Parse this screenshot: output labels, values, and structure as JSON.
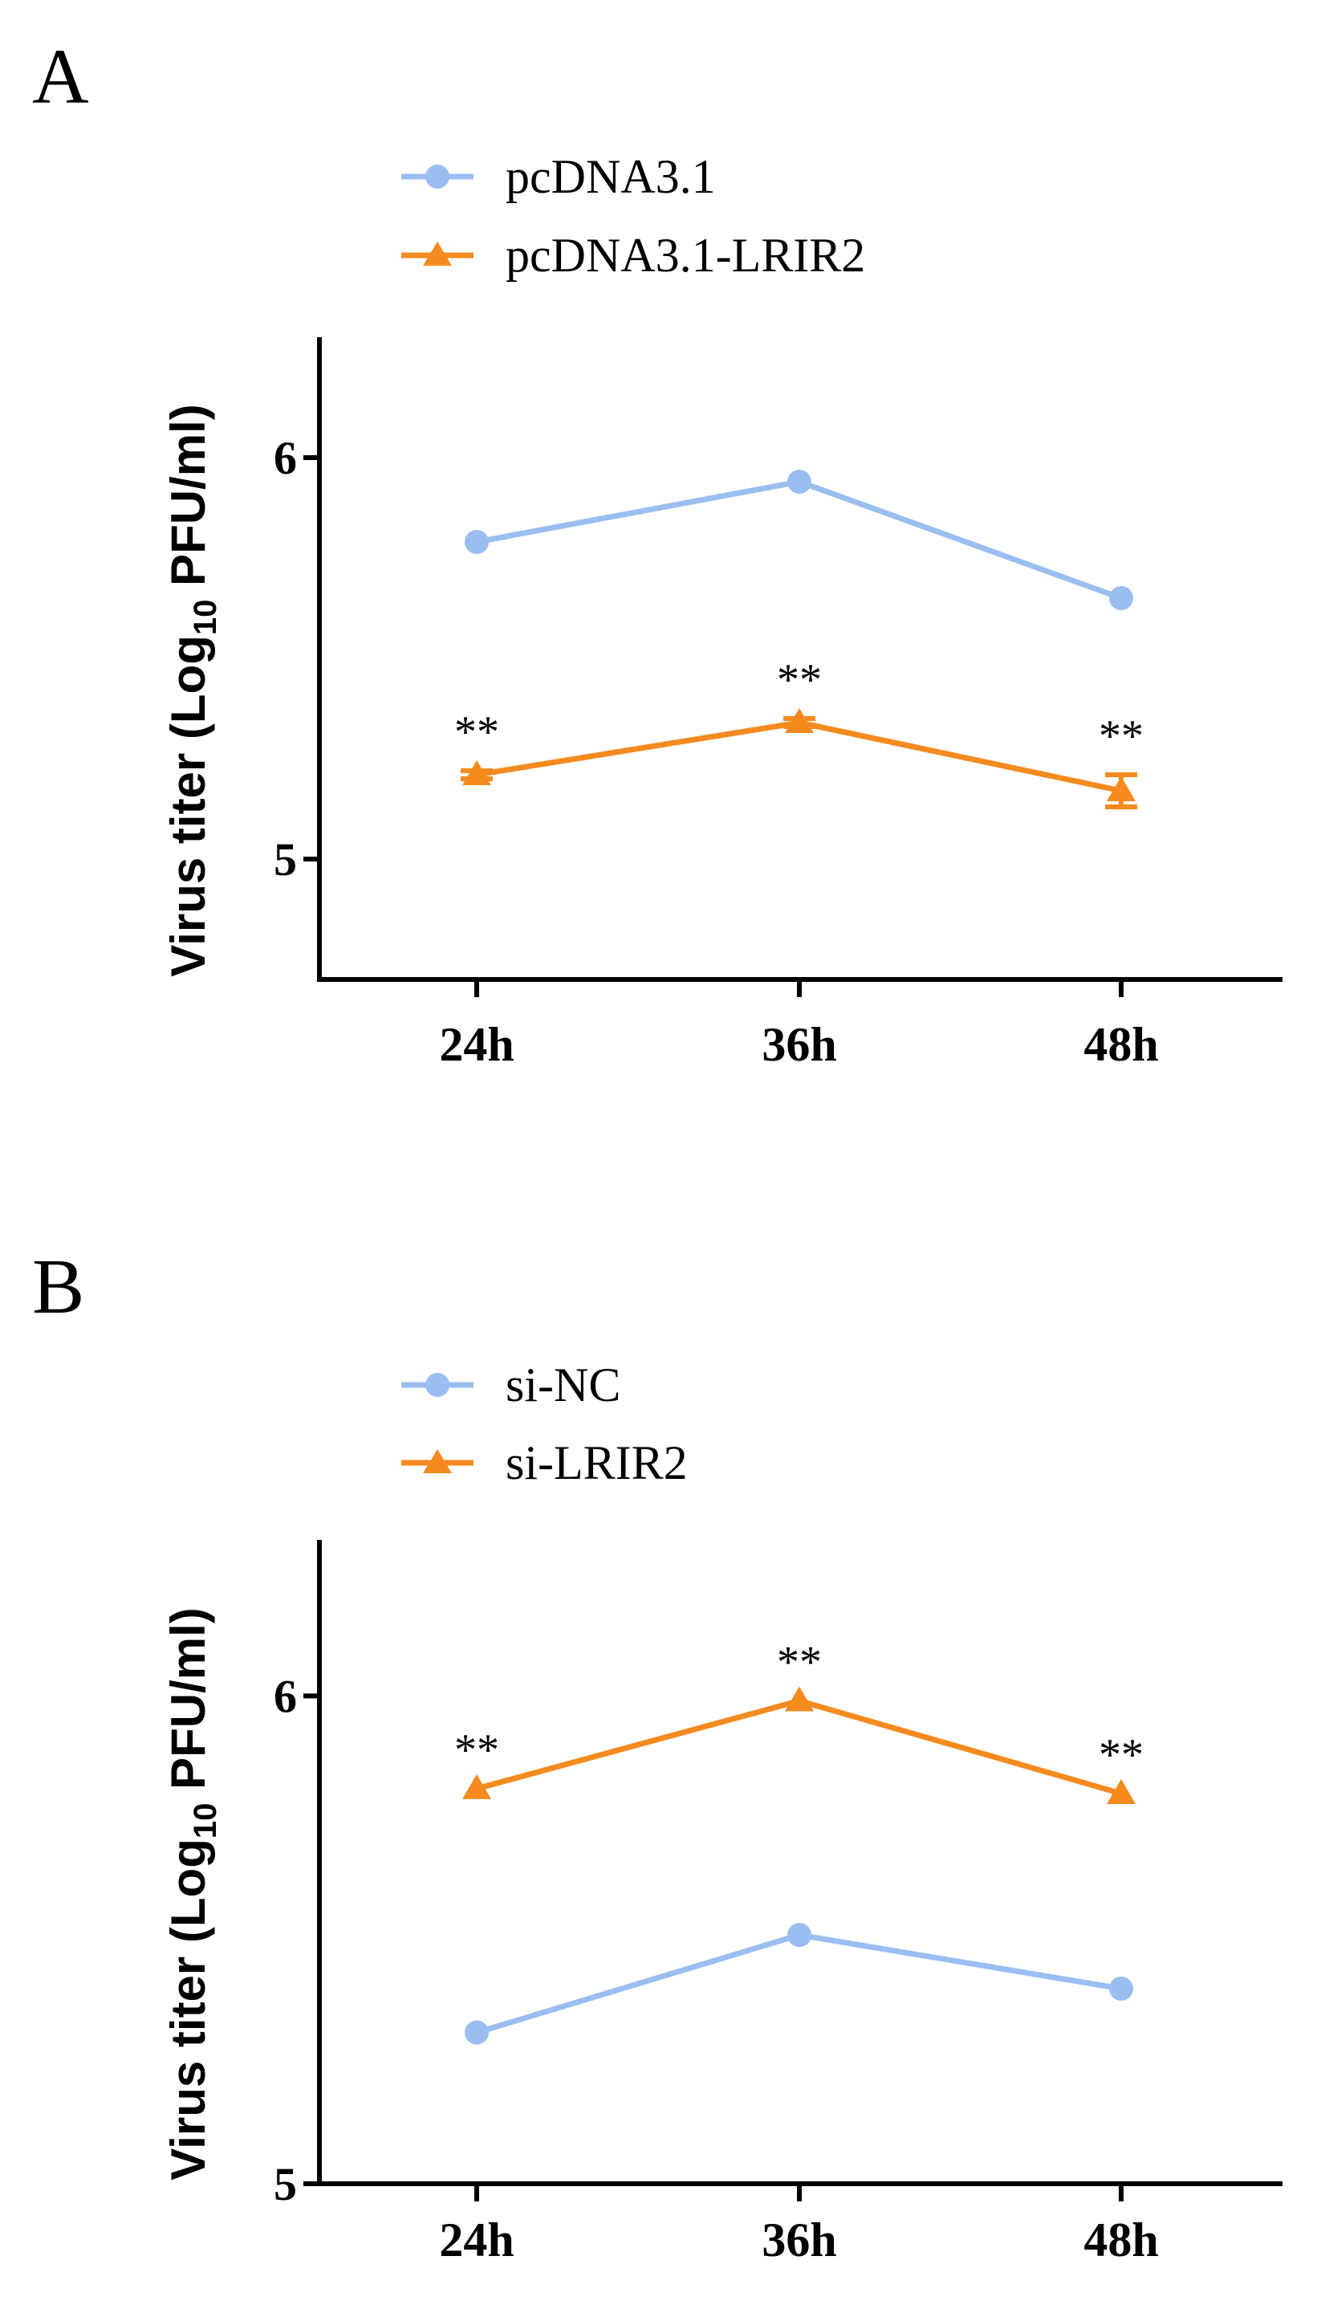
{
  "colors": {
    "blue": "#9ABEF0",
    "orange": "#F58A1F",
    "axis": "#000000"
  },
  "chart_data": [
    {
      "type": "line",
      "panel_label": "A",
      "title": "",
      "xlabel": "",
      "ylabel_main": "Virus titer (Log",
      "ylabel_sub": "10",
      "ylabel_end": " PFU/ml)",
      "categories": [
        "24h",
        "36h",
        "48h"
      ],
      "ylim": [
        4.7,
        6.3
      ],
      "yticks": [
        5,
        6
      ],
      "ytick_labels": [
        "5",
        "6"
      ],
      "legend_position": "top-left",
      "series": [
        {
          "name": "pcDNA3.1",
          "color": "#9ABEF0",
          "marker": "circle",
          "values": [
            5.79,
            5.94,
            5.65
          ],
          "errors": [
            0,
            0,
            0
          ],
          "significance": [
            "",
            "",
            ""
          ]
        },
        {
          "name": "pcDNA3.1-LRIR2",
          "color": "#F58A1F",
          "marker": "triangle",
          "values": [
            5.21,
            5.34,
            5.17
          ],
          "errors": [
            0.01,
            0.01,
            0.04
          ],
          "significance": [
            "**",
            "**",
            "**"
          ]
        }
      ]
    },
    {
      "type": "line",
      "panel_label": "B",
      "title": "",
      "xlabel": "",
      "ylabel_main": "Virus titer (Log",
      "ylabel_sub": "10",
      "ylabel_end": " PFU/ml)",
      "categories": [
        "24h",
        "36h",
        "48h"
      ],
      "ylim": [
        5.0,
        6.32
      ],
      "yticks": [
        5,
        6
      ],
      "ytick_labels": [
        "5",
        "6"
      ],
      "legend_position": "top-left",
      "series": [
        {
          "name": "si-NC",
          "color": "#9ABEF0",
          "marker": "circle",
          "values": [
            5.31,
            5.51,
            5.4
          ],
          "errors": [
            0,
            0,
            0
          ],
          "significance": [
            "",
            "",
            ""
          ]
        },
        {
          "name": "si-LRIR2",
          "color": "#F58A1F",
          "marker": "triangle",
          "values": [
            5.81,
            5.99,
            5.8
          ],
          "errors": [
            0,
            0,
            0
          ],
          "significance": [
            "**",
            "**",
            "**"
          ]
        }
      ]
    }
  ]
}
